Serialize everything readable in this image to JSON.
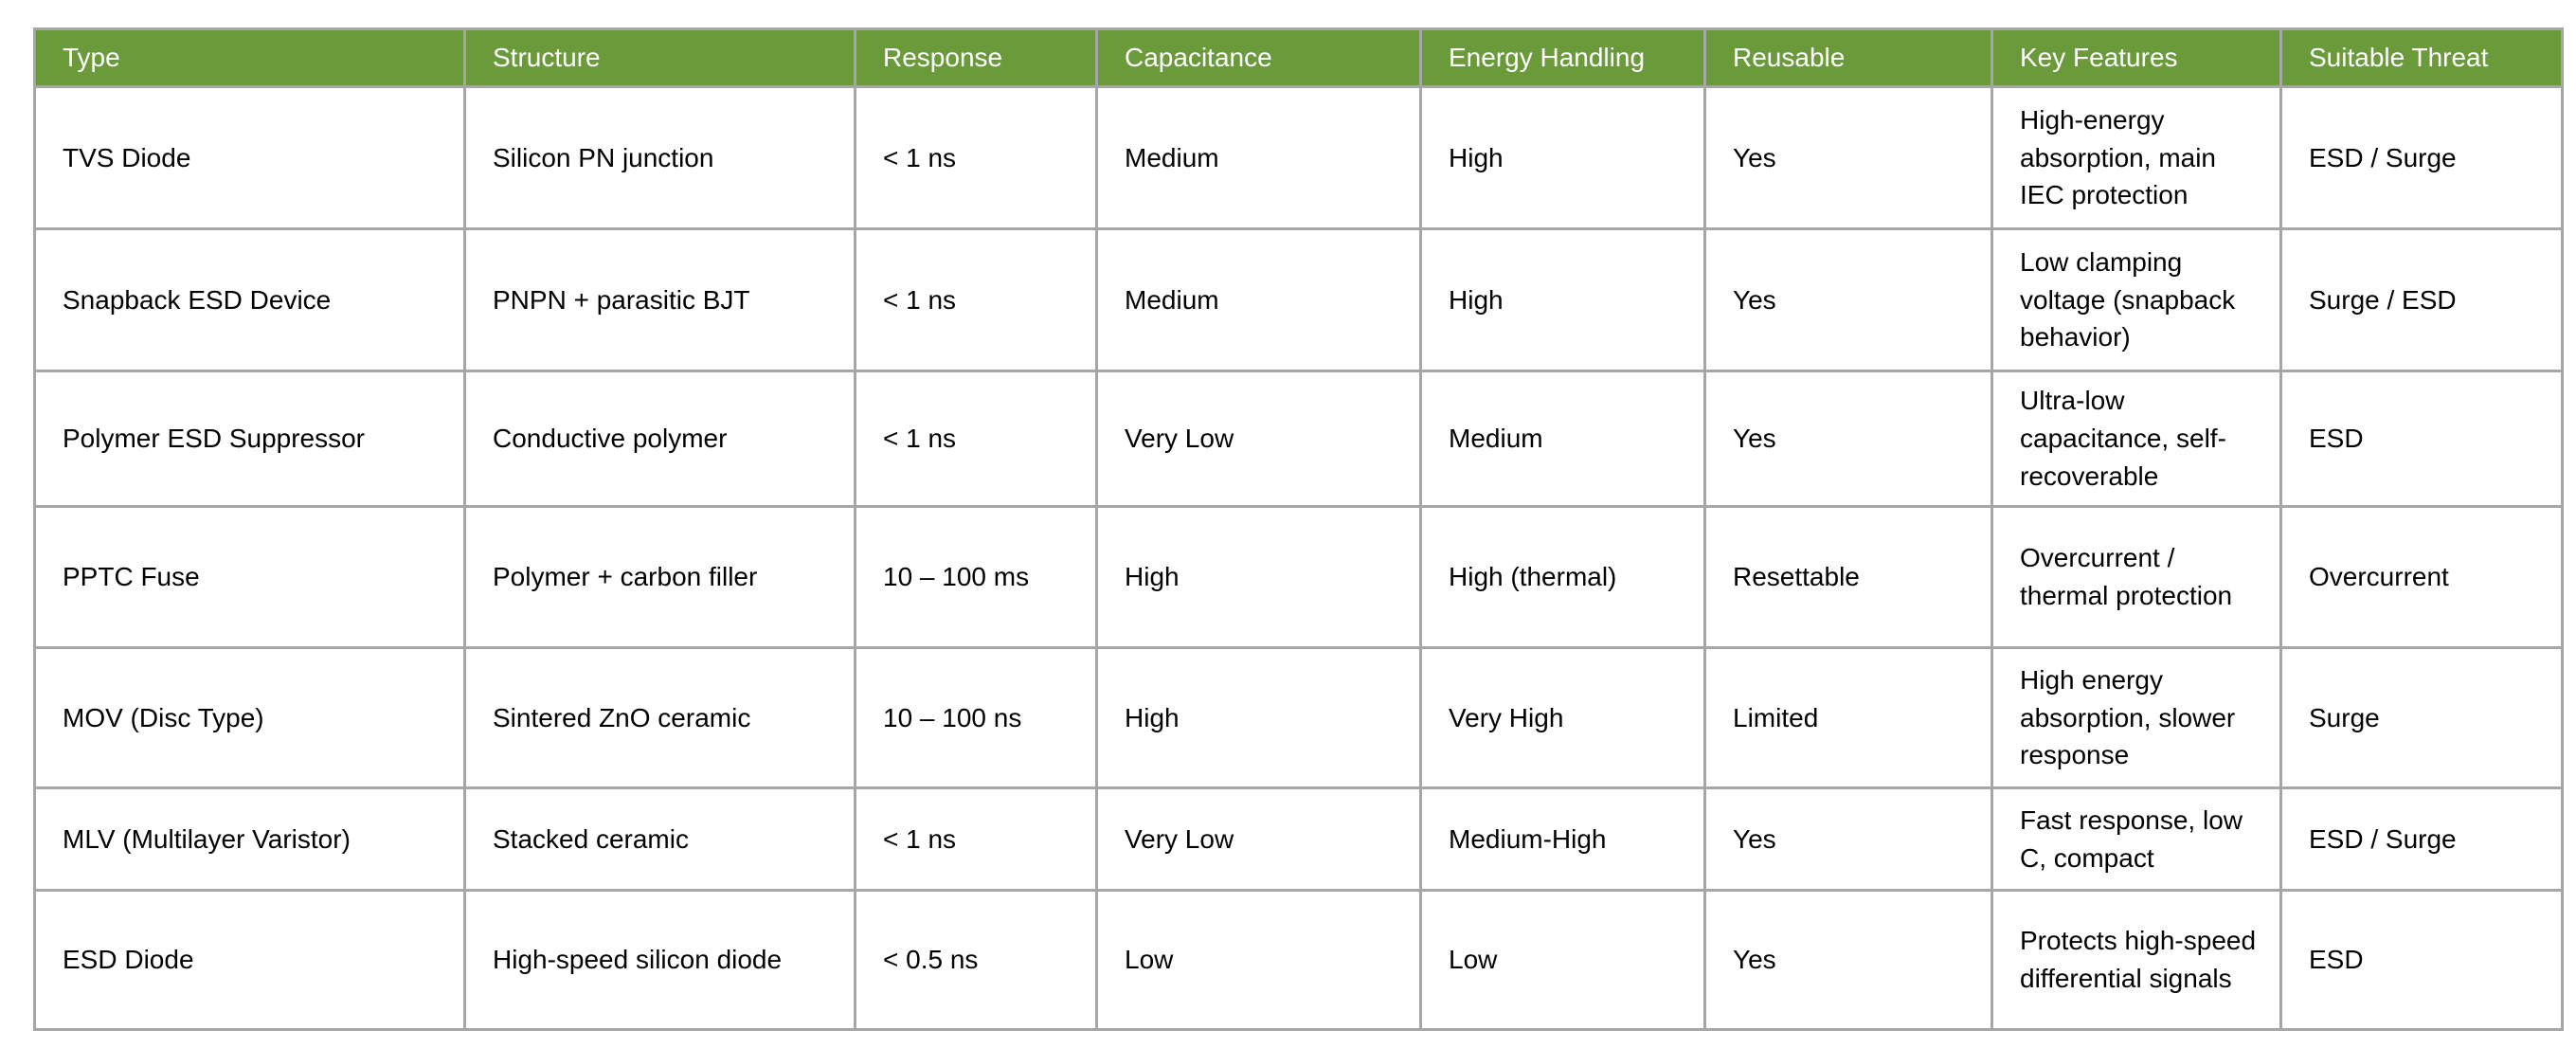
{
  "table": {
    "columns": [
      "Type",
      "Structure",
      "Response",
      "Capacitance",
      "Energy Handling",
      "Reusable",
      "Key Features",
      "Suitable Threat"
    ],
    "rows": [
      [
        "TVS Diode",
        "Silicon PN junction",
        "< 1 ns",
        "Medium",
        "High",
        "Yes",
        "High-energy absorption, main IEC protection",
        "ESD / Surge"
      ],
      [
        "Snapback ESD Device",
        "PNPN + parasitic BJT",
        "< 1 ns",
        "Medium",
        "High",
        "Yes",
        "Low clamping voltage (snapback behavior)",
        "Surge / ESD"
      ],
      [
        "Polymer ESD Suppressor",
        "Conductive polymer",
        "< 1 ns",
        "Very Low",
        "Medium",
        "Yes",
        "Ultra-low capacitance, self-recoverable",
        "ESD"
      ],
      [
        "PPTC Fuse",
        "Polymer + carbon filler",
        "10 – 100 ms",
        "High",
        "High (thermal)",
        "Resettable",
        "Overcurrent / thermal protection",
        "Overcurrent"
      ],
      [
        "MOV (Disc Type)",
        "Sintered ZnO ceramic",
        "10 – 100 ns",
        "High",
        "Very High",
        "Limited",
        "High energy absorption, slower response",
        "Surge"
      ],
      [
        "MLV (Multilayer Varistor)",
        "Stacked ceramic",
        "< 1 ns",
        "Very Low",
        "Medium-High",
        "Yes",
        "Fast response, low C, compact",
        "ESD / Surge"
      ],
      [
        "ESD Diode",
        "High-speed silicon diode",
        "< 0.5 ns",
        "Low",
        "Low",
        "Yes",
        "Protects high-speed differential signals",
        "ESD"
      ]
    ],
    "colors": {
      "header_bg": "#6B9A3B",
      "header_text": "#FFFFFF",
      "border": "#A6A6A6",
      "body_bg": "#FFFFFF",
      "body_text": "#000000"
    }
  }
}
